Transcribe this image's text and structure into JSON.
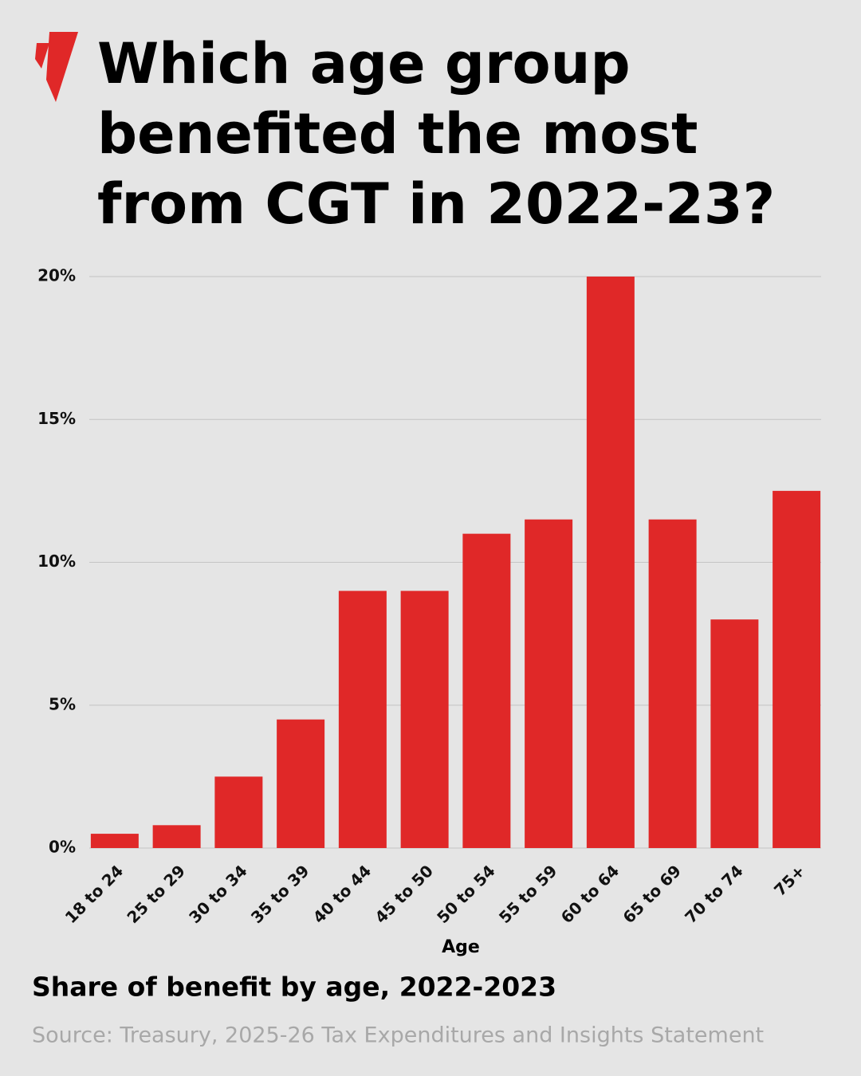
{
  "chart_data": {
    "type": "bar",
    "title": "Which age group benefited the most from CGT in 2022-23?",
    "subtitle": "Share of benefit by age, 2022-2023",
    "source": "Source: Treasury, 2025-26 Tax Expenditures and Insights Statement",
    "x_label": "Age",
    "categories": [
      "18 to 24",
      "25 to 29",
      "30 to 34",
      "35 to 39",
      "40 to 44",
      "45 to 50",
      "50 to 54",
      "55 to 59",
      "60 to 64",
      "65 to 69",
      "70 to 74",
      "75+"
    ],
    "values": [
      0.5,
      0.8,
      2.5,
      4.5,
      9,
      9,
      11,
      11.5,
      20,
      11.5,
      8,
      12.5
    ],
    "color": "#e02828",
    "ylim": [
      0,
      20
    ],
    "yticks": [
      {
        "value": 0,
        "label": "0%"
      },
      {
        "value": 5,
        "label": "5%"
      },
      {
        "value": 10,
        "label": "10%"
      },
      {
        "value": 15,
        "label": "15%"
      },
      {
        "value": 20,
        "label": "20%"
      }
    ],
    "grid": true
  }
}
